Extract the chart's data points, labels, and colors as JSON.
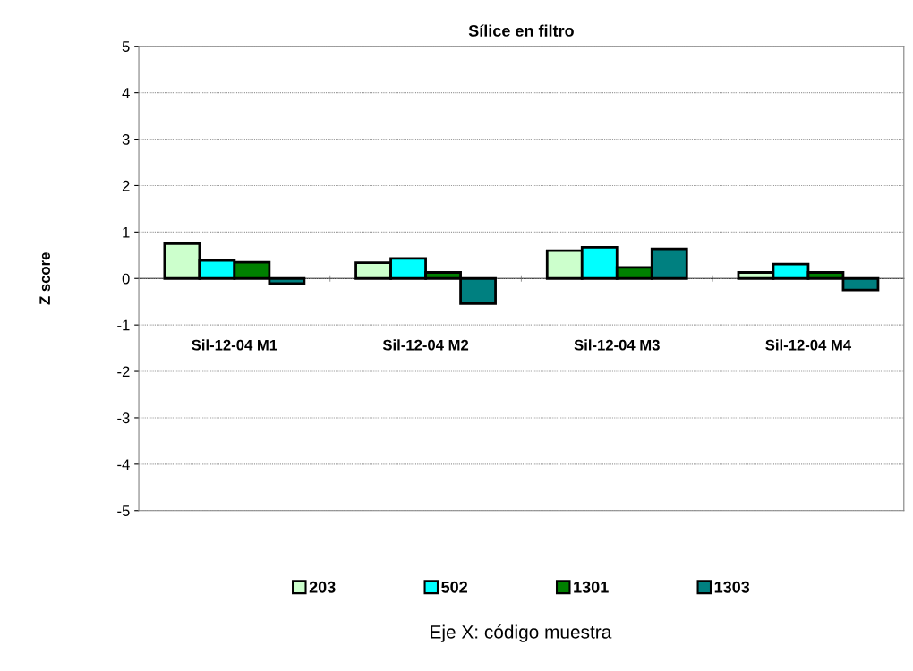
{
  "chart_data": {
    "type": "bar",
    "title": "Sílice en filtro",
    "annotations": [
      "Eje X: código muestra"
    ],
    "ylabel": "Z score",
    "categories": [
      "Sil-12-04 M1",
      "Sil-12-04 M2",
      "Sil-12-04 M3",
      "Sil-12-04 M4"
    ],
    "series": [
      {
        "name": "203",
        "color": "#ccffcc",
        "values": [
          0.75,
          0.34,
          0.6,
          0.13
        ]
      },
      {
        "name": "502",
        "color": "#00ffff",
        "values": [
          0.39,
          0.43,
          0.67,
          0.31
        ]
      },
      {
        "name": "1301",
        "color": "#008000",
        "values": [
          0.35,
          0.13,
          0.24,
          0.13
        ]
      },
      {
        "name": "1303",
        "color": "#008080",
        "values": [
          -0.11,
          -0.54,
          0.64,
          -0.25
        ]
      }
    ],
    "ylim": [
      -5,
      5
    ],
    "yticks": [
      -5,
      -4,
      -3,
      -2,
      -1,
      0,
      1,
      2,
      3,
      4,
      5
    ],
    "grid": "y",
    "legend": "bottom"
  }
}
